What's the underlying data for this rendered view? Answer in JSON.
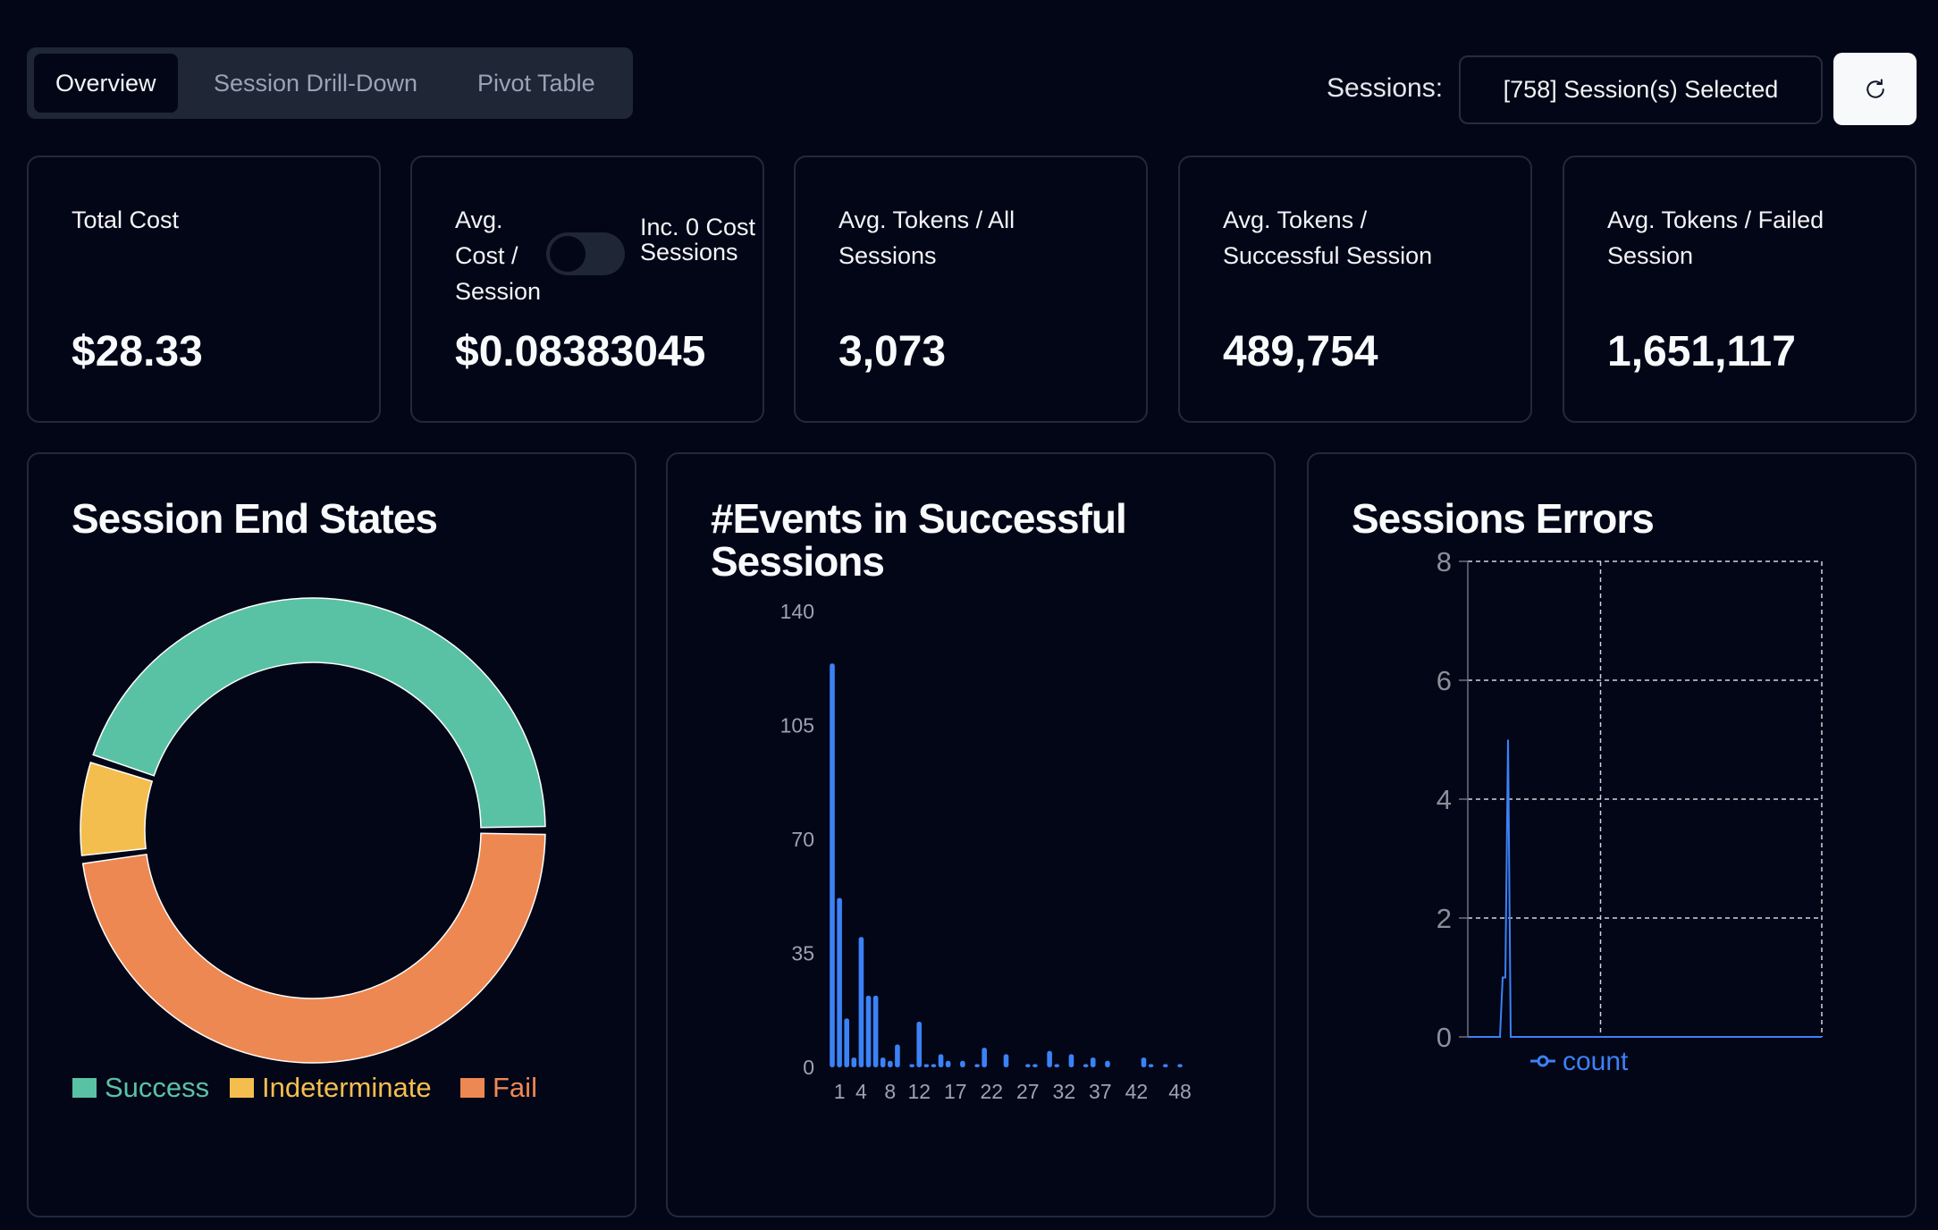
{
  "tabs": [
    {
      "label": "Overview",
      "active": true
    },
    {
      "label": "Session Drill-Down",
      "active": false
    },
    {
      "label": "Pivot Table",
      "active": false
    }
  ],
  "sessions": {
    "label": "Sessions:",
    "selected": "[758] Session(s) Selected",
    "refresh_icon": "refresh-icon"
  },
  "kpis": [
    {
      "label": "Total Cost",
      "value": "$28.33"
    },
    {
      "label": "Avg. Cost / Session",
      "toggle_label": "Inc. 0 Cost Sessions",
      "toggle_on": false,
      "value": "$0.08383045"
    },
    {
      "label": "Avg. Tokens / All Sessions",
      "value": "3,073"
    },
    {
      "label": "Avg. Tokens / Successful Session",
      "value": "489,754"
    },
    {
      "label": "Avg. Tokens / Failed Session",
      "value": "1,651,117"
    }
  ],
  "colors": {
    "success": "#5ac2a4",
    "indeterminate": "#f4be4f",
    "fail": "#ee8852",
    "bar": "#3b82f6",
    "line": "#3b82f6"
  },
  "chart_data": [
    {
      "type": "pie",
      "title": "Session End States",
      "donut": true,
      "legend": "bottom",
      "labels": [
        "Success",
        "Indeterminate",
        "Fail"
      ],
      "values": [
        45,
        7,
        48
      ]
    },
    {
      "type": "bar",
      "title": "#Events in Successful Sessions",
      "x": [
        0,
        1,
        2,
        3,
        4,
        5,
        6,
        7,
        8,
        9,
        10,
        11,
        12,
        13,
        14,
        15,
        16,
        17,
        18,
        19,
        20,
        21,
        22,
        23,
        24,
        25,
        26,
        27,
        28,
        29,
        30,
        31,
        32,
        33,
        34,
        35,
        36,
        37,
        38,
        39,
        40,
        41,
        42,
        43,
        44,
        45,
        46,
        47,
        48
      ],
      "values": [
        124,
        52,
        15,
        3,
        40,
        22,
        22,
        3,
        2,
        7,
        0,
        1,
        14,
        1,
        1,
        4,
        2,
        0,
        2,
        0,
        1,
        6,
        0,
        0,
        4,
        0,
        0,
        1,
        1,
        0,
        5,
        1,
        0,
        4,
        0,
        1,
        3,
        0,
        2,
        0,
        0,
        0,
        0,
        3,
        1,
        0,
        1,
        0,
        1
      ],
      "xticks": [
        "1",
        "4",
        "8",
        "12",
        "17",
        "22",
        "27",
        "32",
        "37",
        "42",
        "48"
      ],
      "yticks": [
        "0",
        "35",
        "70",
        "105",
        "140"
      ],
      "ylim": [
        0,
        140
      ]
    },
    {
      "type": "line",
      "title": "Sessions Errors",
      "series": [
        {
          "name": "count",
          "values": [
            0,
            0,
            0,
            0,
            0,
            0,
            0,
            0,
            0,
            0,
            0,
            0,
            0,
            1,
            1,
            5,
            0,
            0,
            0,
            0,
            0,
            0,
            0,
            0,
            0,
            0,
            0,
            0,
            0,
            0,
            0,
            0,
            0,
            0,
            0,
            0,
            0,
            0,
            0,
            0,
            0,
            0,
            0,
            0,
            0,
            0,
            0,
            0,
            0,
            0,
            0,
            0,
            0,
            0,
            0,
            0,
            0,
            0,
            0,
            0,
            0,
            0,
            0,
            0,
            0,
            0,
            0,
            0,
            0,
            0,
            0,
            0,
            0,
            0,
            0,
            0,
            0,
            0,
            0,
            0,
            0,
            0,
            0,
            0,
            0,
            0,
            0,
            0,
            0,
            0,
            0,
            0,
            0,
            0,
            0,
            0,
            0,
            0,
            0,
            0,
            0,
            0,
            0,
            0,
            0,
            0,
            0,
            0,
            0,
            0,
            0,
            0,
            0,
            0,
            0,
            0,
            0,
            0,
            0,
            0,
            0,
            0,
            0,
            0,
            0,
            0,
            0,
            0,
            0,
            0,
            0,
            0,
            0
          ]
        }
      ],
      "yticks": [
        "0",
        "2",
        "4",
        "6",
        "8"
      ],
      "ylim": [
        0,
        8
      ],
      "grid": true,
      "legend": "bottom"
    }
  ]
}
